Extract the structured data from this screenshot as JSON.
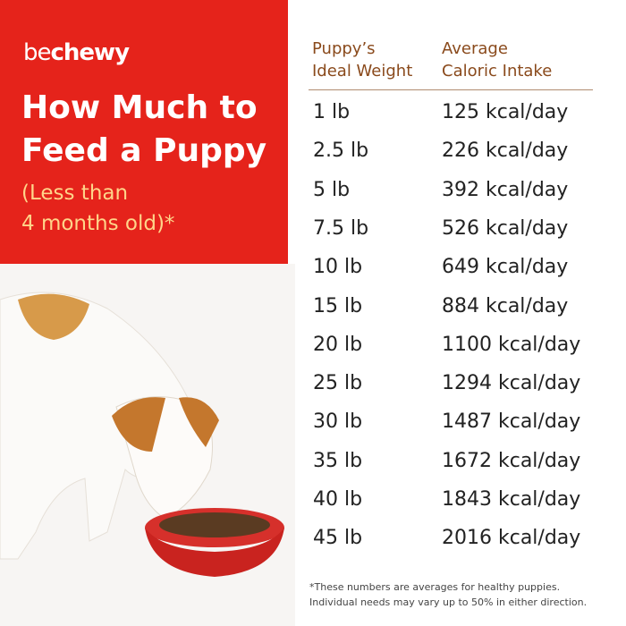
{
  "brand": {
    "light": "be",
    "bold": "chewy"
  },
  "title": [
    "How Much to",
    "Feed a Puppy"
  ],
  "subtitle": [
    "(Less than",
    "4 months old)*"
  ],
  "table": {
    "headers": [
      [
        "Puppy’s",
        "Ideal Weight"
      ],
      [
        "Average",
        "Caloric Intake"
      ]
    ],
    "rows": [
      [
        "1 lb",
        "125 kcal/day"
      ],
      [
        "2.5 lb",
        "226 kcal/day"
      ],
      [
        "5 lb",
        "392 kcal/day"
      ],
      [
        "7.5 lb",
        "526 kcal/day"
      ],
      [
        "10 lb",
        "649 kcal/day"
      ],
      [
        "15 lb",
        "884 kcal/day"
      ],
      [
        "20 lb",
        "1100 kcal/day"
      ],
      [
        "25 lb",
        "1294 kcal/day"
      ],
      [
        "30 lb",
        "1487 kcal/day"
      ],
      [
        "35 lb",
        "1672 kcal/day"
      ],
      [
        "40 lb",
        "1843 kcal/day"
      ],
      [
        "45 lb",
        "2016 kcal/day"
      ]
    ]
  },
  "footnote": [
    "*These numbers are averages for healthy puppies.",
    "Individual needs may vary up to 50% in either direction."
  ]
}
